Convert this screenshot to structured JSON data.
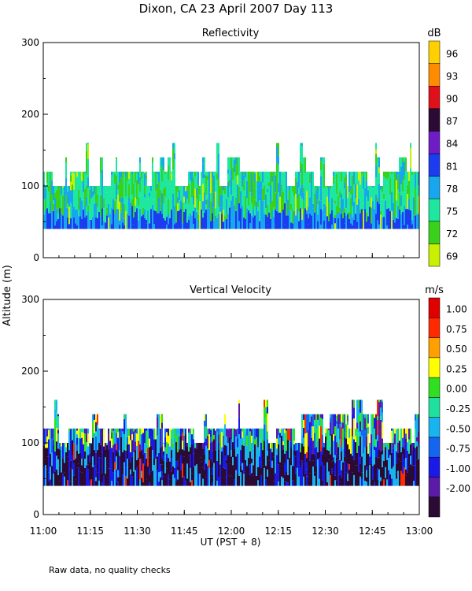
{
  "title": "Dixon, CA 23 April 2007  Day 113",
  "ylabel_shared": "Altitude (m)",
  "xlabel": "UT  (PST + 8)",
  "note": "Raw data, no quality checks",
  "chart_data": [
    {
      "type": "heatmap",
      "title": "Reflectivity",
      "xlabel": "UT  (PST + 8)",
      "ylabel": "Altitude (m)",
      "x_range": [
        "11:00",
        "13:00"
      ],
      "x_minutes": [
        0,
        120
      ],
      "x_ticks": [
        "11:00",
        "11:15",
        "11:30",
        "11:45",
        "12:00",
        "12:15",
        "12:30",
        "12:45",
        "13:00"
      ],
      "ylim": [
        0,
        300
      ],
      "y_ticks": [
        0,
        100,
        200,
        300
      ],
      "data_base_altitude_m": 40,
      "data_top_altitude_m_typical": [
        100,
        140
      ],
      "data_top_altitude_m_max": 160,
      "colorbar": {
        "unit": "dB",
        "labels": [
          "96",
          "93",
          "90",
          "87",
          "84",
          "81",
          "78",
          "75",
          "72",
          "69"
        ],
        "levels": [
          69,
          72,
          75,
          78,
          81,
          84,
          87,
          90,
          93,
          96
        ],
        "colors": [
          "#c8f000",
          "#39d11a",
          "#1ee8a0",
          "#18a6ee",
          "#1c3cf0",
          "#6f1cc7",
          "#2b0a33",
          "#e0101a",
          "#ff8c00",
          "#ffd000"
        ]
      }
    },
    {
      "type": "heatmap",
      "title": "Vertical Velocity",
      "xlabel": "UT  (PST + 8)",
      "ylabel": "Altitude (m)",
      "x_range": [
        "11:00",
        "13:00"
      ],
      "x_minutes": [
        0,
        120
      ],
      "x_ticks": [
        "11:00",
        "11:15",
        "11:30",
        "11:45",
        "12:00",
        "12:15",
        "12:30",
        "12:45",
        "13:00"
      ],
      "ylim": [
        0,
        300
      ],
      "y_ticks": [
        0,
        100,
        200,
        300
      ],
      "data_base_altitude_m": 40,
      "data_top_altitude_m_typical": [
        100,
        140
      ],
      "data_top_altitude_m_max": 160,
      "colorbar": {
        "unit": "m/s",
        "labels": [
          "1.00",
          "0.75",
          "0.50",
          "0.25",
          "0.00",
          "-0.25",
          "-0.50",
          "-0.75",
          "-1.00",
          "-2.00"
        ],
        "levels": [
          -2.0,
          -1.0,
          -0.75,
          -0.5,
          -0.25,
          0.0,
          0.25,
          0.5,
          0.75,
          1.0
        ],
        "colors": [
          "#2b0a33",
          "#5c1aa8",
          "#1a1ae6",
          "#1466f0",
          "#18b4f0",
          "#20e0a0",
          "#30e020",
          "#ffff00",
          "#ffa000",
          "#ff2a00",
          "#e00000"
        ]
      }
    }
  ]
}
